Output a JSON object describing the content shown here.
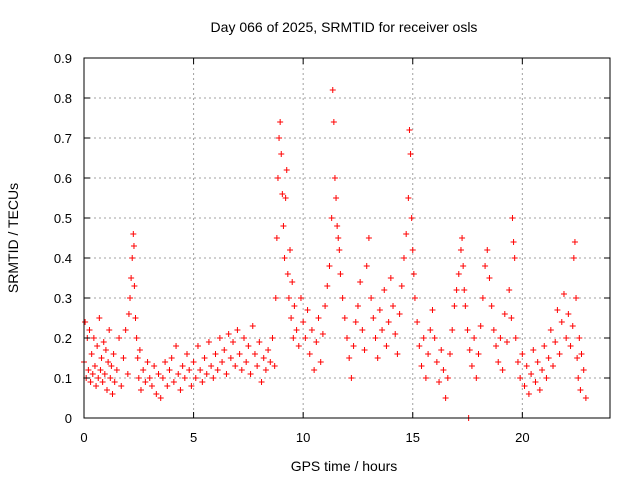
{
  "chart_data": {
    "type": "scatter",
    "title": "Day 066 of 2025, SRMTID for receiver osls",
    "xlabel": "GPS time / hours",
    "ylabel": "SRMTID / TECUs",
    "xlim": [
      0,
      24
    ],
    "ylim": [
      0,
      0.9
    ],
    "xticks": [
      0,
      5,
      10,
      15,
      20
    ],
    "yticks": [
      0,
      0.1,
      0.2,
      0.3,
      0.4,
      0.5,
      0.6,
      0.7,
      0.8,
      0.9
    ],
    "ytick_labels": [
      "0",
      "0.1",
      "0.2",
      "0.3",
      "0.4",
      "0.5",
      "0.6",
      "0.7",
      "0.8",
      "0.9"
    ],
    "grid": true,
    "marker": "plus",
    "color": "#ff0000",
    "series": [
      {
        "name": "SRMTID",
        "points": [
          [
            0.0,
            0.14
          ],
          [
            0.05,
            0.24
          ],
          [
            0.1,
            0.1
          ],
          [
            0.15,
            0.2
          ],
          [
            0.2,
            0.12
          ],
          [
            0.25,
            0.22
          ],
          [
            0.3,
            0.09
          ],
          [
            0.35,
            0.16
          ],
          [
            0.4,
            0.11
          ],
          [
            0.45,
            0.2
          ],
          [
            0.5,
            0.13
          ],
          [
            0.55,
            0.08
          ],
          [
            0.6,
            0.18
          ],
          [
            0.65,
            0.1
          ],
          [
            0.7,
            0.25
          ],
          [
            0.75,
            0.12
          ],
          [
            0.8,
            0.15
          ],
          [
            0.85,
            0.09
          ],
          [
            0.9,
            0.19
          ],
          [
            0.95,
            0.11
          ],
          [
            1.0,
            0.17
          ],
          [
            1.05,
            0.07
          ],
          [
            1.1,
            0.14
          ],
          [
            1.15,
            0.22
          ],
          [
            1.2,
            0.1
          ],
          [
            1.25,
            0.13
          ],
          [
            1.3,
            0.06
          ],
          [
            1.35,
            0.16
          ],
          [
            1.4,
            0.09
          ],
          [
            1.5,
            0.12
          ],
          [
            1.6,
            0.2
          ],
          [
            1.7,
            0.08
          ],
          [
            1.8,
            0.15
          ],
          [
            1.9,
            0.22
          ],
          [
            2.0,
            0.11
          ],
          [
            2.05,
            0.26
          ],
          [
            2.1,
            0.3
          ],
          [
            2.15,
            0.35
          ],
          [
            2.2,
            0.4
          ],
          [
            2.25,
            0.46
          ],
          [
            2.28,
            0.43
          ],
          [
            2.3,
            0.33
          ],
          [
            2.35,
            0.25
          ],
          [
            2.4,
            0.2
          ],
          [
            2.45,
            0.15
          ],
          [
            2.5,
            0.1
          ],
          [
            2.55,
            0.17
          ],
          [
            2.6,
            0.07
          ],
          [
            2.7,
            0.12
          ],
          [
            2.8,
            0.09
          ],
          [
            2.9,
            0.14
          ],
          [
            3.0,
            0.1
          ],
          [
            3.1,
            0.08
          ],
          [
            3.2,
            0.13
          ],
          [
            3.3,
            0.06
          ],
          [
            3.4,
            0.11
          ],
          [
            3.5,
            0.05
          ],
          [
            3.6,
            0.1
          ],
          [
            3.7,
            0.14
          ],
          [
            3.8,
            0.08
          ],
          [
            3.9,
            0.12
          ],
          [
            4.0,
            0.15
          ],
          [
            4.1,
            0.09
          ],
          [
            4.2,
            0.18
          ],
          [
            4.3,
            0.11
          ],
          [
            4.4,
            0.07
          ],
          [
            4.5,
            0.13
          ],
          [
            4.6,
            0.1
          ],
          [
            4.7,
            0.16
          ],
          [
            4.8,
            0.12
          ],
          [
            4.9,
            0.08
          ],
          [
            5.0,
            0.14
          ],
          [
            5.1,
            0.1
          ],
          [
            5.2,
            0.18
          ],
          [
            5.3,
            0.12
          ],
          [
            5.4,
            0.09
          ],
          [
            5.5,
            0.15
          ],
          [
            5.6,
            0.11
          ],
          [
            5.7,
            0.19
          ],
          [
            5.8,
            0.13
          ],
          [
            5.9,
            0.1
          ],
          [
            6.0,
            0.16
          ],
          [
            6.1,
            0.12
          ],
          [
            6.2,
            0.2
          ],
          [
            6.3,
            0.14
          ],
          [
            6.4,
            0.17
          ],
          [
            6.5,
            0.11
          ],
          [
            6.6,
            0.21
          ],
          [
            6.7,
            0.15
          ],
          [
            6.8,
            0.19
          ],
          [
            6.9,
            0.13
          ],
          [
            7.0,
            0.22
          ],
          [
            7.1,
            0.16
          ],
          [
            7.2,
            0.12
          ],
          [
            7.3,
            0.2
          ],
          [
            7.4,
            0.14
          ],
          [
            7.5,
            0.18
          ],
          [
            7.6,
            0.11
          ],
          [
            7.7,
            0.23
          ],
          [
            7.8,
            0.16
          ],
          [
            7.9,
            0.13
          ],
          [
            8.0,
            0.19
          ],
          [
            8.1,
            0.09
          ],
          [
            8.2,
            0.15
          ],
          [
            8.3,
            0.12
          ],
          [
            8.4,
            0.17
          ],
          [
            8.5,
            0.14
          ],
          [
            8.6,
            0.2
          ],
          [
            8.7,
            0.13
          ],
          [
            8.75,
            0.3
          ],
          [
            8.8,
            0.45
          ],
          [
            8.85,
            0.6
          ],
          [
            8.9,
            0.7
          ],
          [
            8.95,
            0.74
          ],
          [
            9.0,
            0.66
          ],
          [
            9.05,
            0.56
          ],
          [
            9.1,
            0.48
          ],
          [
            9.15,
            0.4
          ],
          [
            9.2,
            0.55
          ],
          [
            9.25,
            0.62
          ],
          [
            9.3,
            0.36
          ],
          [
            9.35,
            0.3
          ],
          [
            9.4,
            0.42
          ],
          [
            9.45,
            0.25
          ],
          [
            9.5,
            0.34
          ],
          [
            9.55,
            0.2
          ],
          [
            9.6,
            0.28
          ],
          [
            9.7,
            0.22
          ],
          [
            9.8,
            0.18
          ],
          [
            9.9,
            0.3
          ],
          [
            10.0,
            0.24
          ],
          [
            10.1,
            0.2
          ],
          [
            10.2,
            0.27
          ],
          [
            10.3,
            0.16
          ],
          [
            10.4,
            0.22
          ],
          [
            10.5,
            0.12
          ],
          [
            10.6,
            0.19
          ],
          [
            10.7,
            0.25
          ],
          [
            10.8,
            0.14
          ],
          [
            10.9,
            0.21
          ],
          [
            11.0,
            0.28
          ],
          [
            11.1,
            0.33
          ],
          [
            11.2,
            0.38
          ],
          [
            11.3,
            0.5
          ],
          [
            11.35,
            0.82
          ],
          [
            11.4,
            0.74
          ],
          [
            11.45,
            0.6
          ],
          [
            11.5,
            0.55
          ],
          [
            11.55,
            0.48
          ],
          [
            11.6,
            0.45
          ],
          [
            11.65,
            0.42
          ],
          [
            11.7,
            0.36
          ],
          [
            11.8,
            0.3
          ],
          [
            11.9,
            0.25
          ],
          [
            12.0,
            0.2
          ],
          [
            12.1,
            0.15
          ],
          [
            12.2,
            0.1
          ],
          [
            12.3,
            0.18
          ],
          [
            12.4,
            0.24
          ],
          [
            12.5,
            0.28
          ],
          [
            12.6,
            0.34
          ],
          [
            12.7,
            0.22
          ],
          [
            12.8,
            0.17
          ],
          [
            12.9,
            0.38
          ],
          [
            13.0,
            0.45
          ],
          [
            13.1,
            0.3
          ],
          [
            13.2,
            0.25
          ],
          [
            13.3,
            0.2
          ],
          [
            13.4,
            0.15
          ],
          [
            13.5,
            0.27
          ],
          [
            13.6,
            0.22
          ],
          [
            13.7,
            0.32
          ],
          [
            13.8,
            0.18
          ],
          [
            13.9,
            0.24
          ],
          [
            14.0,
            0.35
          ],
          [
            14.1,
            0.28
          ],
          [
            14.2,
            0.21
          ],
          [
            14.3,
            0.16
          ],
          [
            14.4,
            0.26
          ],
          [
            14.5,
            0.33
          ],
          [
            14.6,
            0.4
          ],
          [
            14.7,
            0.46
          ],
          [
            14.8,
            0.55
          ],
          [
            14.85,
            0.72
          ],
          [
            14.9,
            0.66
          ],
          [
            14.95,
            0.5
          ],
          [
            15.0,
            0.42
          ],
          [
            15.05,
            0.36
          ],
          [
            15.1,
            0.3
          ],
          [
            15.2,
            0.24
          ],
          [
            15.3,
            0.18
          ],
          [
            15.4,
            0.13
          ],
          [
            15.5,
            0.2
          ],
          [
            15.6,
            0.1
          ],
          [
            15.7,
            0.16
          ],
          [
            15.8,
            0.22
          ],
          [
            15.9,
            0.27
          ],
          [
            16.0,
            0.2
          ],
          [
            16.1,
            0.14
          ],
          [
            16.2,
            0.09
          ],
          [
            16.3,
            0.17
          ],
          [
            16.4,
            0.12
          ],
          [
            16.5,
            0.05
          ],
          [
            16.6,
            0.1
          ],
          [
            16.7,
            0.16
          ],
          [
            16.8,
            0.22
          ],
          [
            16.9,
            0.28
          ],
          [
            17.0,
            0.32
          ],
          [
            17.1,
            0.36
          ],
          [
            17.2,
            0.42
          ],
          [
            17.25,
            0.45
          ],
          [
            17.3,
            0.38
          ],
          [
            17.35,
            0.32
          ],
          [
            17.4,
            0.28
          ],
          [
            17.5,
            0.22
          ],
          [
            17.55,
            0.0
          ],
          [
            17.6,
            0.17
          ],
          [
            17.7,
            0.13
          ],
          [
            17.8,
            0.2
          ],
          [
            17.9,
            0.1
          ],
          [
            18.0,
            0.16
          ],
          [
            18.1,
            0.23
          ],
          [
            18.2,
            0.3
          ],
          [
            18.3,
            0.38
          ],
          [
            18.4,
            0.42
          ],
          [
            18.5,
            0.35
          ],
          [
            18.6,
            0.28
          ],
          [
            18.7,
            0.22
          ],
          [
            18.8,
            0.18
          ],
          [
            18.9,
            0.14
          ],
          [
            19.0,
            0.2
          ],
          [
            19.1,
            0.12
          ],
          [
            19.2,
            0.26
          ],
          [
            19.3,
            0.19
          ],
          [
            19.4,
            0.32
          ],
          [
            19.5,
            0.25
          ],
          [
            19.55,
            0.5
          ],
          [
            19.6,
            0.44
          ],
          [
            19.65,
            0.4
          ],
          [
            19.7,
            0.2
          ],
          [
            19.8,
            0.14
          ],
          [
            19.9,
            0.1
          ],
          [
            20.0,
            0.16
          ],
          [
            20.1,
            0.08
          ],
          [
            20.2,
            0.13
          ],
          [
            20.3,
            0.06
          ],
          [
            20.4,
            0.11
          ],
          [
            20.5,
            0.17
          ],
          [
            20.6,
            0.09
          ],
          [
            20.7,
            0.14
          ],
          [
            20.8,
            0.07
          ],
          [
            20.9,
            0.12
          ],
          [
            21.0,
            0.18
          ],
          [
            21.1,
            0.1
          ],
          [
            21.2,
            0.15
          ],
          [
            21.3,
            0.22
          ],
          [
            21.4,
            0.13
          ],
          [
            21.5,
            0.19
          ],
          [
            21.6,
            0.27
          ],
          [
            21.7,
            0.16
          ],
          [
            21.8,
            0.24
          ],
          [
            21.9,
            0.31
          ],
          [
            22.0,
            0.2
          ],
          [
            22.1,
            0.26
          ],
          [
            22.2,
            0.18
          ],
          [
            22.3,
            0.23
          ],
          [
            22.35,
            0.4
          ],
          [
            22.4,
            0.44
          ],
          [
            22.45,
            0.3
          ],
          [
            22.5,
            0.15
          ],
          [
            22.55,
            0.1
          ],
          [
            22.6,
            0.2
          ],
          [
            22.65,
            0.07
          ],
          [
            22.7,
            0.16
          ],
          [
            22.8,
            0.12
          ],
          [
            22.9,
            0.05
          ]
        ]
      }
    ]
  }
}
